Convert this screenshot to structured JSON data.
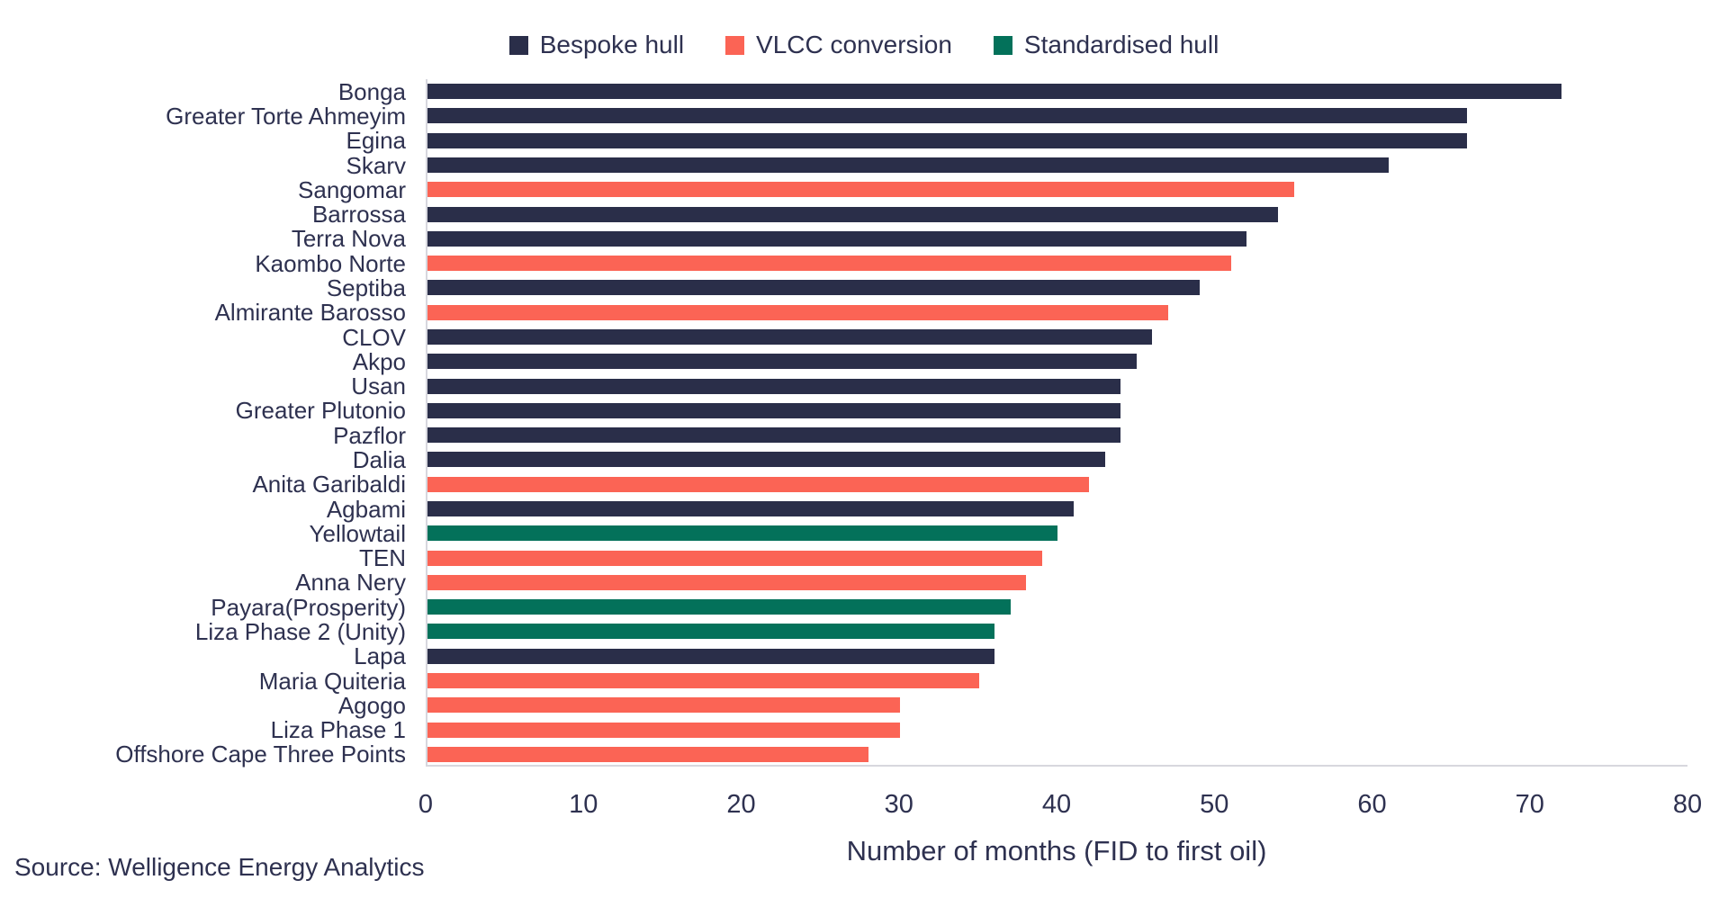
{
  "legend": [
    {
      "label": "Bespoke hull",
      "series": "Bespoke hull"
    },
    {
      "label": "VLCC conversion",
      "series": "VLCC conversion"
    },
    {
      "label": "Standardised hull",
      "series": "Standardised hull"
    }
  ],
  "source": "Source: Welligence Energy Analytics",
  "chart_data": {
    "type": "bar",
    "orientation": "horizontal",
    "xlabel": "Number of months (FID to first oil)",
    "xlim": [
      0,
      80
    ],
    "xticks": [
      0,
      10,
      20,
      30,
      40,
      50,
      60,
      70,
      80
    ],
    "grid": false,
    "legend_position": "top",
    "series": [
      {
        "name": "Bespoke hull",
        "color": "#2a2e49"
      },
      {
        "name": "VLCC conversion",
        "color": "#fb6455"
      },
      {
        "name": "Standardised hull",
        "color": "#03715a"
      }
    ],
    "bars": [
      {
        "category": "Bonga",
        "value": 72,
        "series": "Bespoke hull"
      },
      {
        "category": "Greater Torte Ahmeyim",
        "value": 66,
        "series": "Bespoke hull"
      },
      {
        "category": "Egina",
        "value": 66,
        "series": "Bespoke hull"
      },
      {
        "category": "Skarv",
        "value": 61,
        "series": "Bespoke hull"
      },
      {
        "category": "Sangomar",
        "value": 55,
        "series": "VLCC conversion"
      },
      {
        "category": "Barrossa",
        "value": 54,
        "series": "Bespoke hull"
      },
      {
        "category": "Terra Nova",
        "value": 52,
        "series": "Bespoke hull"
      },
      {
        "category": "Kaombo Norte",
        "value": 51,
        "series": "VLCC conversion"
      },
      {
        "category": "Septiba",
        "value": 49,
        "series": "Bespoke hull"
      },
      {
        "category": "Almirante Barosso",
        "value": 47,
        "series": "VLCC conversion"
      },
      {
        "category": "CLOV",
        "value": 46,
        "series": "Bespoke hull"
      },
      {
        "category": "Akpo",
        "value": 45,
        "series": "Bespoke hull"
      },
      {
        "category": "Usan",
        "value": 44,
        "series": "Bespoke hull"
      },
      {
        "category": "Greater Plutonio",
        "value": 44,
        "series": "Bespoke hull"
      },
      {
        "category": "Pazflor",
        "value": 44,
        "series": "Bespoke hull"
      },
      {
        "category": "Dalia",
        "value": 43,
        "series": "Bespoke hull"
      },
      {
        "category": "Anita Garibaldi",
        "value": 42,
        "series": "VLCC conversion"
      },
      {
        "category": "Agbami",
        "value": 41,
        "series": "Bespoke hull"
      },
      {
        "category": "Yellowtail",
        "value": 40,
        "series": "Standardised hull"
      },
      {
        "category": "TEN",
        "value": 39,
        "series": "VLCC conversion"
      },
      {
        "category": "Anna Nery",
        "value": 38,
        "series": "VLCC conversion"
      },
      {
        "category": "Payara(Prosperity)",
        "value": 37,
        "series": "Standardised hull"
      },
      {
        "category": "Liza Phase 2 (Unity)",
        "value": 36,
        "series": "Standardised hull"
      },
      {
        "category": "Lapa",
        "value": 36,
        "series": "Bespoke hull"
      },
      {
        "category": "Maria Quiteria",
        "value": 35,
        "series": "VLCC conversion"
      },
      {
        "category": "Agogo",
        "value": 30,
        "series": "VLCC conversion"
      },
      {
        "category": "Liza Phase 1",
        "value": 30,
        "series": "VLCC conversion"
      },
      {
        "category": "Offshore Cape Three Points",
        "value": 28,
        "series": "VLCC conversion"
      }
    ]
  }
}
